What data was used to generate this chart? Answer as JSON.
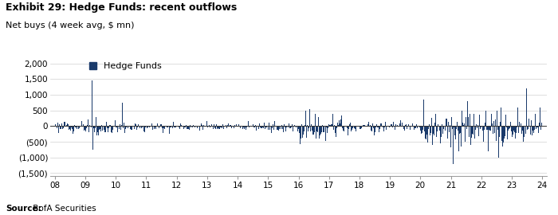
{
  "title": "Exhibit 29: Hedge Funds: recent outflows",
  "subtitle": "Net buys (4 week avg, $ mn)",
  "source_bold": "Source:",
  "source_rest": " BofA Securities",
  "legend_label": "Hedge Funds",
  "bar_color": "#1a3a6b",
  "background_color": "#ffffff",
  "ylim": [
    -1600,
    2100
  ],
  "yticks": [
    -1500,
    -1000,
    -500,
    0,
    500,
    1000,
    1500,
    2000
  ],
  "ytick_labels": [
    "(1,500)",
    "(1,000)",
    "(500)",
    "0",
    "500",
    "1,000",
    "1,500",
    "2,000"
  ],
  "xtick_labels": [
    "08",
    "09",
    "10",
    "11",
    "12",
    "13",
    "14",
    "15",
    "16",
    "17",
    "18",
    "19",
    "20",
    "21",
    "22",
    "23",
    "24"
  ],
  "n_bars": 832
}
